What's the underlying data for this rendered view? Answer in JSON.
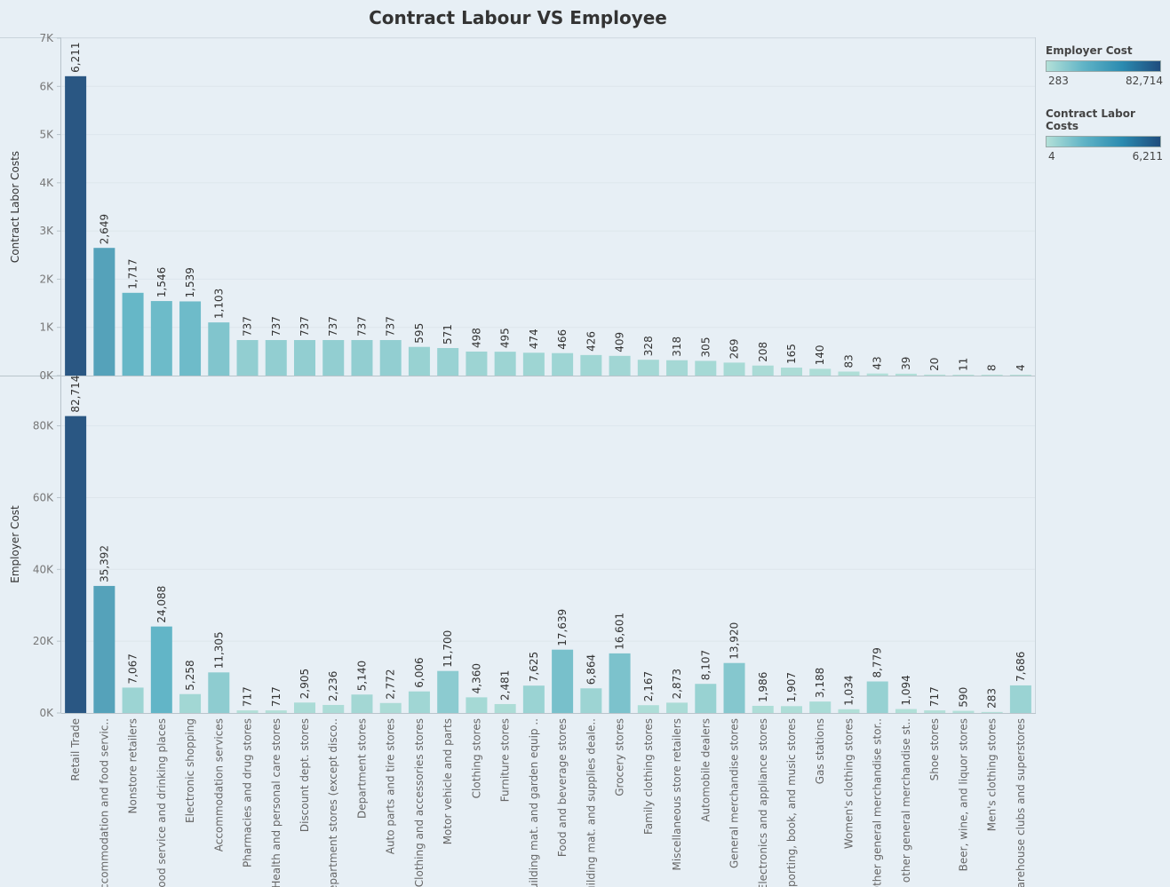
{
  "title": "Contract Labour VS  Employee",
  "legend": {
    "employer": {
      "title": "Employer Cost",
      "min": "283",
      "max": "82,714"
    },
    "contract": {
      "title": "Contract Labor Costs",
      "min": "4",
      "max": "6,211"
    }
  },
  "colors": {
    "low": "#b3e0d8",
    "mid": "#5fb3c6",
    "high": "#2a5783",
    "background": "#e7eff5"
  },
  "chart_data": [
    {
      "type": "bar",
      "ylabel": "Contract Labor Costs",
      "ylim": [
        0,
        7000
      ],
      "yticks": [
        0,
        1000,
        2000,
        3000,
        4000,
        5000,
        6000,
        7000
      ],
      "yticklabels": [
        "0K",
        "1K",
        "2K",
        "3K",
        "4K",
        "5K",
        "6K",
        "7K"
      ],
      "grid": true,
      "values": [
        6211,
        2649,
        1717,
        1546,
        1539,
        1103,
        737,
        737,
        737,
        737,
        737,
        737,
        595,
        571,
        498,
        495,
        474,
        466,
        426,
        409,
        328,
        318,
        305,
        269,
        208,
        165,
        140,
        83,
        43,
        39,
        20,
        11,
        8,
        4
      ],
      "labels": [
        "6,211",
        "2,649",
        "1,717",
        "1,546",
        "1,539",
        "1,103",
        "737",
        "737",
        "737",
        "737",
        "737",
        "737",
        "595",
        "571",
        "498",
        "495",
        "474",
        "466",
        "426",
        "409",
        "328",
        "318",
        "305",
        "269",
        "208",
        "165",
        "140",
        "83",
        "43",
        "39",
        "20",
        "11",
        "8",
        "4"
      ]
    },
    {
      "type": "bar",
      "ylabel": "Employer Cost",
      "ylim": [
        0,
        94000
      ],
      "yticks": [
        0,
        20000,
        40000,
        60000,
        80000
      ],
      "yticklabels": [
        "0K",
        "20K",
        "40K",
        "60K",
        "80K"
      ],
      "grid": true,
      "values": [
        82714,
        35392,
        7067,
        24088,
        5258,
        11305,
        717,
        717,
        2905,
        2236,
        5140,
        2772,
        6006,
        11700,
        4360,
        2481,
        7625,
        17639,
        6864,
        16601,
        2167,
        2873,
        8107,
        13920,
        1986,
        1907,
        3188,
        1034,
        8779,
        1094,
        717,
        590,
        283,
        7686
      ],
      "labels": [
        "82,714",
        "35,392",
        "7,067",
        "24,088",
        "5,258",
        "11,305",
        "717",
        "717",
        "2,905",
        "2,236",
        "5,140",
        "2,772",
        "6,006",
        "11,700",
        "4,360",
        "2,481",
        "7,625",
        "17,639",
        "6,864",
        "16,601",
        "2,167",
        "2,873",
        "8,107",
        "13,920",
        "1,986",
        "1,907",
        "3,188",
        "1,034",
        "8,779",
        "1,094",
        "717",
        "590",
        "283",
        "7,686"
      ]
    }
  ],
  "categories": [
    "Retail Trade",
    "Accommodation and food servic..",
    "Nonstore retailers",
    "Food service and drinking places",
    "Electronic shopping",
    "Accommodation services",
    "Pharmacies and drug stores",
    "Health and personal care stores",
    "Discount dept. stores",
    "Department stores (except disco..",
    "Department stores",
    "Auto parts and tire stores",
    "Clothing and accessories stores",
    "Motor vehicle and parts",
    "Clothing stores",
    "Furniture stores",
    "Building mat. and garden equip ..",
    "Food and beverage stores",
    "Building mat. and supplies deale..",
    "Grocery stores",
    "Family clothing stores",
    "Miscellaneous store retailers",
    "Automobile dealers",
    "General merchandise stores",
    "Electronics and appliance stores",
    "Sporting, book, and  music stores",
    "Gas stations",
    "Women's clothing stores",
    "Other general merchandise stor..",
    "All other general merchandise st..",
    "Shoe stores",
    "Beer, wine, and liquor stores",
    "Men's clothing stores",
    "Warehouse clubs and superstores"
  ]
}
